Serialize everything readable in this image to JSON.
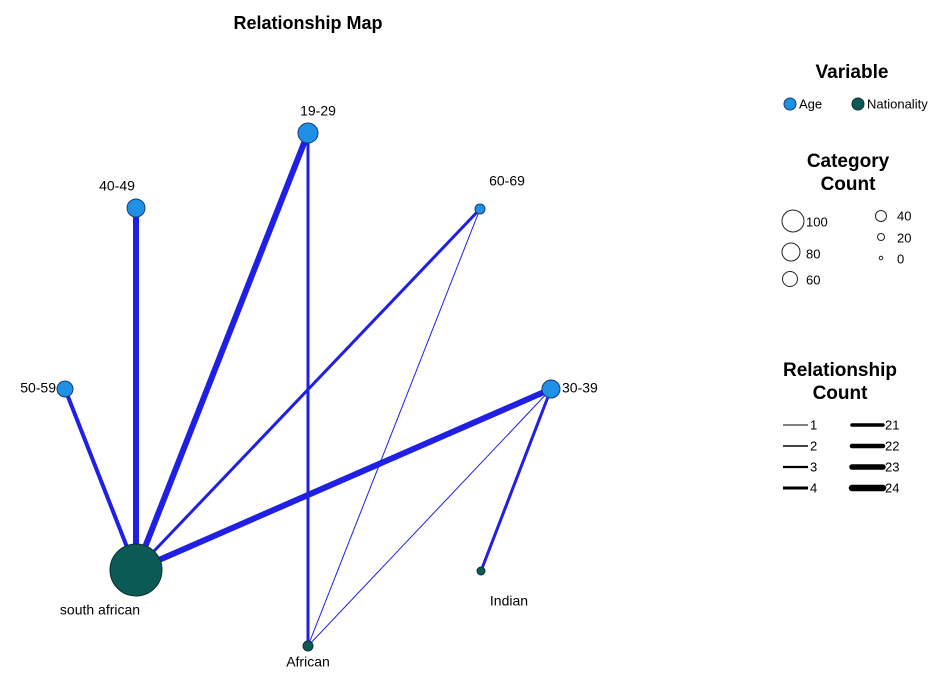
{
  "title": "Relationship Map",
  "nodes": [
    {
      "label": "19-29"
    },
    {
      "label": "40-49"
    },
    {
      "label": "60-69"
    },
    {
      "label": "50-59"
    },
    {
      "label": "30-39"
    },
    {
      "label": "south african"
    },
    {
      "label": "Indian"
    },
    {
      "label": "African"
    }
  ],
  "legend": {
    "variable": {
      "title": "Variable",
      "items": [
        "Age",
        "Nationality"
      ]
    },
    "category_count": {
      "title": [
        "Category",
        "Count"
      ],
      "labels": [
        100,
        80,
        60,
        40,
        20,
        0
      ]
    },
    "relationship_count": {
      "title": [
        "Relationship",
        "Count"
      ],
      "labels": [
        1,
        2,
        3,
        4,
        21,
        22,
        23,
        24
      ]
    }
  }
}
